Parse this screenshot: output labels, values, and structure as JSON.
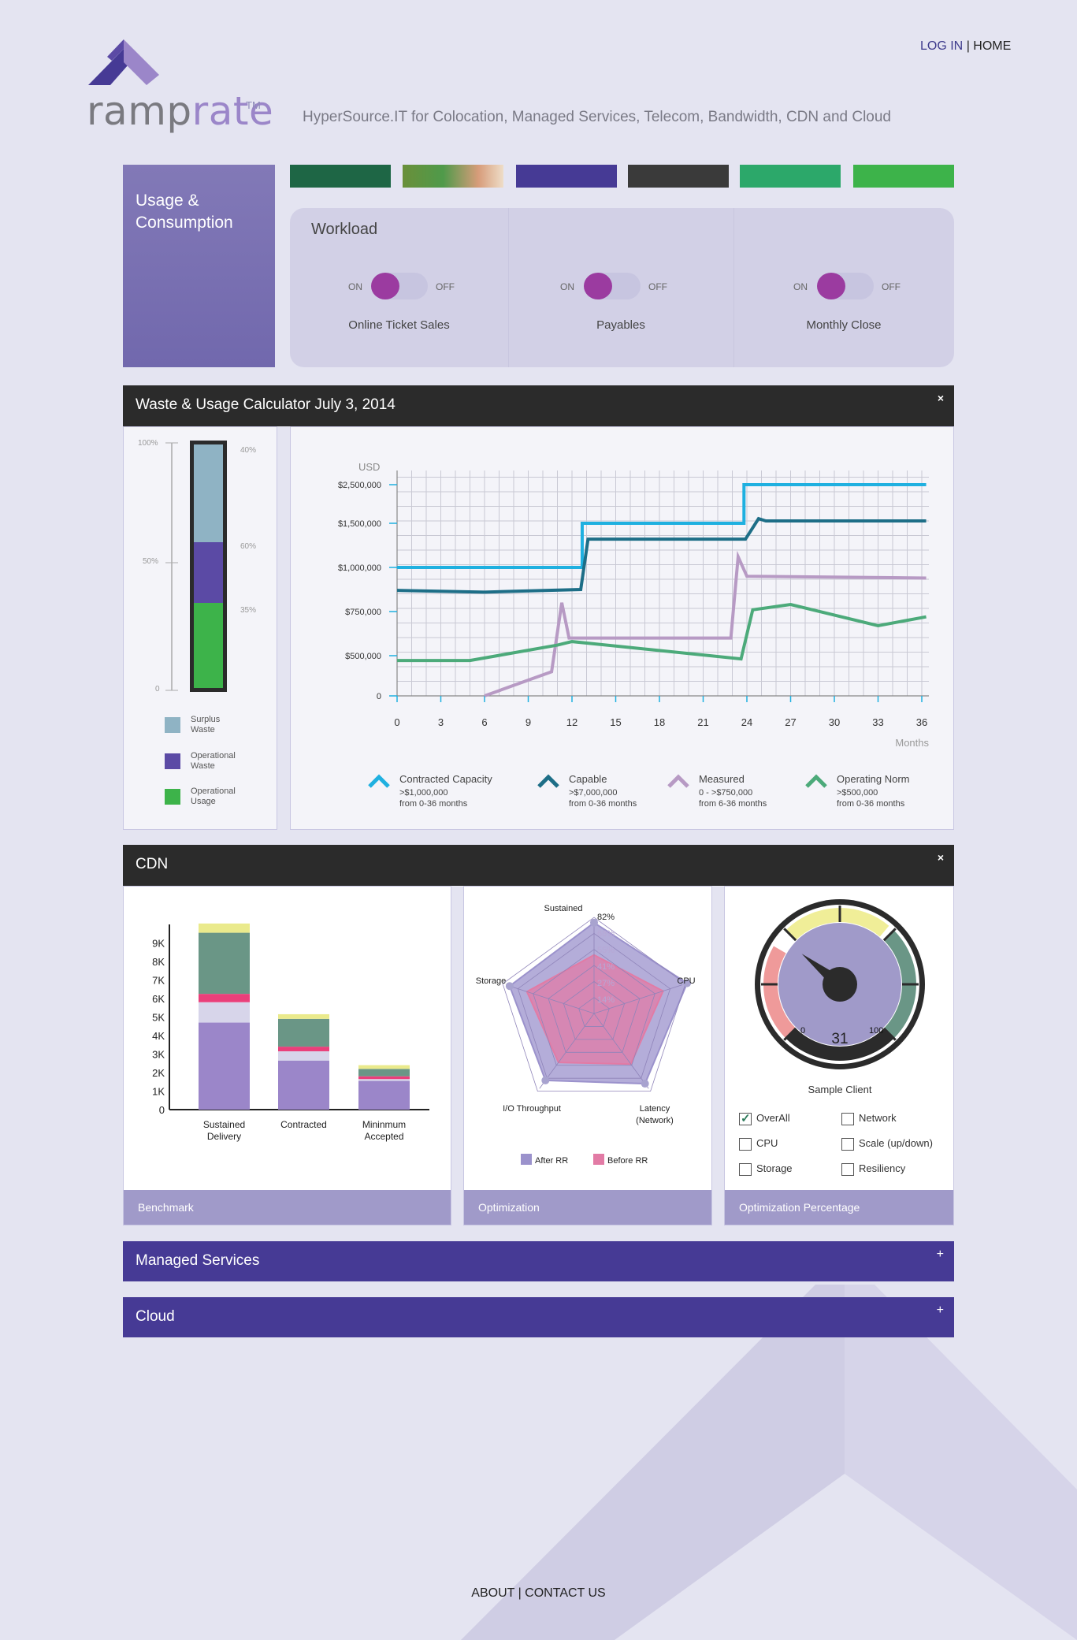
{
  "brand": {
    "name_part1": "ramp",
    "name_part2": "rate",
    "tm": "TM",
    "tagline": "HyperSource.IT for Colocation, Managed Services, Telecom, Bandwidth, CDN and Cloud"
  },
  "nav": {
    "login": "LOG IN",
    "separator": "|",
    "home": "HOME"
  },
  "usage_panel": {
    "title": "Usage & Consumption"
  },
  "swatches": [
    "#1e6645",
    "image",
    "#463a95",
    "#3a3a3a",
    "#2ca86a",
    "#3db34a"
  ],
  "workload": {
    "title": "Workload",
    "on_label": "ON",
    "off_label": "OFF",
    "items": [
      {
        "label": "Online Ticket Sales",
        "state": "on"
      },
      {
        "label": "Payables",
        "state": "on"
      },
      {
        "label": "Monthly Close",
        "state": "on"
      }
    ]
  },
  "waste_section": {
    "title": "Waste &    Usage Calculator July 3, 2014",
    "close": "×"
  },
  "stack_meter": {
    "axis_labels": [
      "100%",
      "50%",
      "0"
    ],
    "segment_labels": [
      "40%",
      "60%",
      "35%"
    ],
    "legend": [
      {
        "line1": "Surplus",
        "line2": "Waste",
        "color": "#8fb3c4"
      },
      {
        "line1": "Operational",
        "line2": "Waste",
        "color": "#5b4aa5"
      },
      {
        "line1": "Operational",
        "line2": "Usage",
        "color": "#3db34a"
      }
    ]
  },
  "chart_data": [
    {
      "type": "line",
      "ylabel": "USD",
      "xlabel": "Months",
      "x_ticks": [
        0,
        3,
        6,
        9,
        12,
        15,
        18,
        21,
        24,
        27,
        30,
        33,
        36
      ],
      "y_tick_labels": [
        "0",
        "$500,000",
        "$750,000",
        "$1,000,000",
        "$1,500,000",
        "$2,500,000"
      ],
      "series": [
        {
          "name": "Contracted Capacity",
          "sub1": ">$1,000,000",
          "sub2": "from 0-36 months",
          "color": "#1fb0e0",
          "x": [
            0,
            12.7,
            12.7,
            23.8,
            23.8,
            36.3
          ],
          "y": [
            1000000,
            1000000,
            1500000,
            1500000,
            2500000,
            2500000
          ]
        },
        {
          "name": "Capable",
          "sub1": ">$7,000,000",
          "sub2": "from 0-36 months",
          "color": "#1d6e87",
          "x": [
            0,
            6,
            12.6,
            13.1,
            23.9,
            24.8,
            25.3,
            36.3
          ],
          "y": [
            870000,
            860000,
            875000,
            1320000,
            1320000,
            1620000,
            1560000,
            1560000
          ]
        },
        {
          "name": "Measured",
          "sub1": "0 - >$750,000",
          "sub2": "from  6-36 months",
          "color": "#b79ac4",
          "x": [
            6,
            10.6,
            11.3,
            11.8,
            22.9,
            23.4,
            24,
            36.3
          ],
          "y": [
            0,
            300000,
            800000,
            600000,
            600000,
            1120000,
            950000,
            940000
          ]
        },
        {
          "name": "Operating Norm",
          "sub1": ">$500,000",
          "sub2": "from 0-36 months",
          "color": "#4caa7a",
          "x": [
            0,
            5,
            11,
            12,
            23.6,
            24.4,
            27,
            33,
            36.3
          ],
          "y": [
            440000,
            440000,
            560000,
            580000,
            460000,
            760000,
            790000,
            670000,
            720000
          ]
        }
      ]
    },
    {
      "type": "bar",
      "stacked": true,
      "categories": [
        "Sustained Delivery",
        "Contracted",
        "Mininmum Accepted"
      ],
      "y_tick_labels": [
        "0",
        "1K",
        "2K",
        "3K",
        "4K",
        "5K",
        "6K",
        "7K",
        "8K",
        "9K"
      ],
      "ylim": [
        0,
        10000
      ],
      "series": [
        {
          "color": "#9b86c9",
          "values": [
            4700,
            2650,
            1550
          ]
        },
        {
          "color": "#d7d5ea",
          "values": [
            1100,
            500,
            100
          ]
        },
        {
          "color": "#ea3f7a",
          "values": [
            450,
            250,
            150
          ]
        },
        {
          "color": "#6a9686",
          "values": [
            3300,
            1500,
            400
          ]
        },
        {
          "color": "#eaea8c",
          "values": [
            500,
            250,
            200
          ]
        }
      ]
    },
    {
      "type": "radar",
      "axes": [
        "Sustained",
        "CPU",
        "Latency (Network)",
        "I/O Throughput",
        "Storage"
      ],
      "ring_labels": [
        "82%",
        "68%",
        "55%",
        "41%",
        "27%",
        "14%"
      ],
      "series": [
        {
          "name": "After RR",
          "color": "#9b92cc",
          "values": [
            0.9,
            0.97,
            0.86,
            0.82,
            0.88
          ]
        },
        {
          "name": "Before RR",
          "color": "#e27ba5",
          "values": [
            0.58,
            0.72,
            0.62,
            0.6,
            0.7
          ]
        }
      ]
    }
  ],
  "cdn_section": {
    "title": "CDN",
    "close": "×"
  },
  "panels": {
    "benchmark": "Benchmark",
    "optimization": "Optimization",
    "optimization_percentage": "Optimization Percentage"
  },
  "gauge": {
    "min_label": "0",
    "max_label": "100",
    "value": 31,
    "value_text": "31",
    "caption": "Sample Client"
  },
  "checkboxes": [
    {
      "label": "OverAll",
      "checked": true
    },
    {
      "label": "Network",
      "checked": false
    },
    {
      "label": "CPU",
      "checked": false
    },
    {
      "label": "Scale (up/down)",
      "checked": false
    },
    {
      "label": "Storage",
      "checked": false
    },
    {
      "label": "Resiliency",
      "checked": false
    }
  ],
  "managed_services": {
    "title": "Managed Services",
    "expand": "+"
  },
  "cloud": {
    "title": "Cloud",
    "expand": "+"
  },
  "footer": {
    "about": "ABOUT",
    "separator": "|",
    "contact": "CONTACT US"
  }
}
